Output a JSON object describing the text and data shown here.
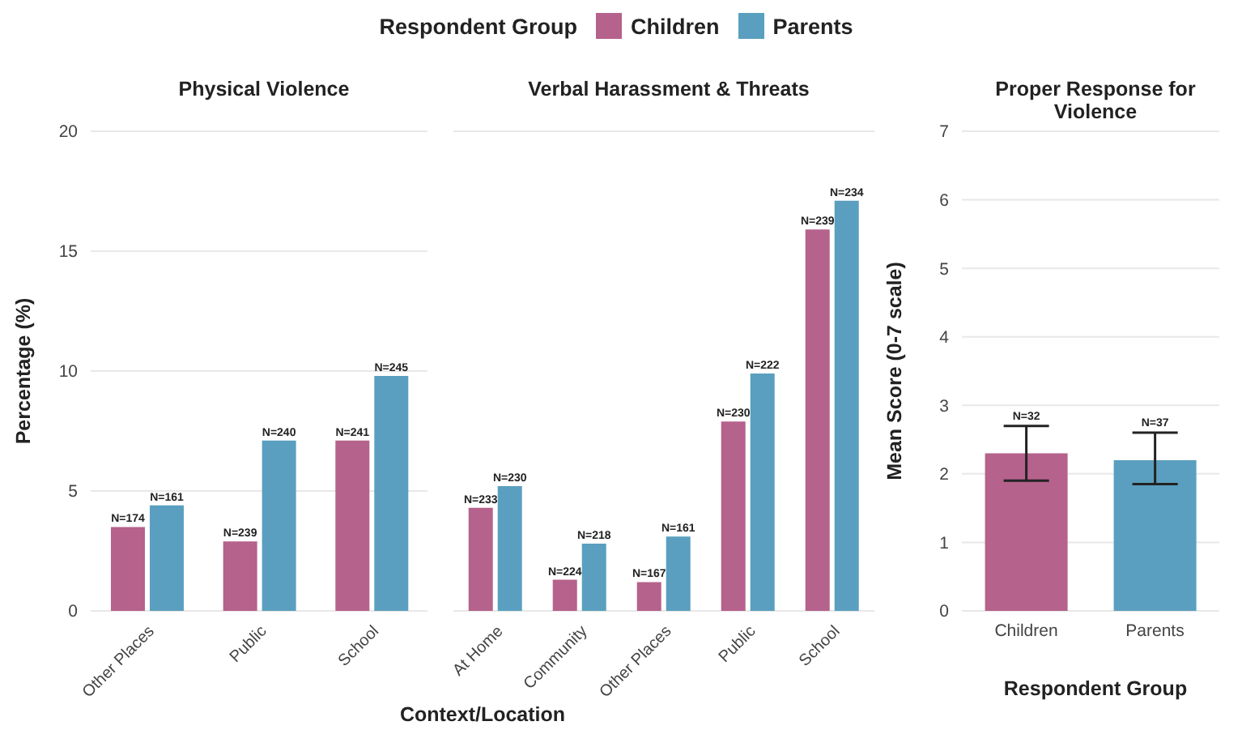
{
  "chart_data": [
    {
      "type": "bar",
      "title": "Physical Violence",
      "xlabel": "Context/Location",
      "ylabel": "Percentage (%)",
      "legend_title": "Respondent Group",
      "legend": "top",
      "grid": "y",
      "categories": [
        "Other Places",
        "Public",
        "School"
      ],
      "ylim": [
        0,
        20
      ],
      "yticks": [
        0,
        5,
        10,
        15,
        20
      ],
      "series": [
        {
          "name": "Children",
          "color": "#b5628c",
          "values": [
            3.5,
            2.9,
            7.1
          ]
        },
        {
          "name": "Parents",
          "color": "#5a9fbf",
          "values": [
            4.4,
            7.1,
            9.8
          ]
        }
      ],
      "annotations": [
        {
          "text": "N=174",
          "x": "Other Places",
          "y": 3.5
        },
        {
          "text": "N=161",
          "x": "Other Places",
          "y": 4.4
        },
        {
          "text": "N=239",
          "x": "Public",
          "y": 2.9
        },
        {
          "text": "N=240",
          "x": "Public",
          "y": 7.1
        },
        {
          "text": "N=241",
          "x": "School",
          "y": 7.1
        },
        {
          "text": "N=245",
          "x": "School",
          "y": 9.8
        }
      ]
    },
    {
      "type": "bar",
      "title": "Verbal Harassment & Threats",
      "grid": "y",
      "tick_labels": "x",
      "categories": [
        "At Home",
        "Community",
        "Other Places",
        "Public",
        "School"
      ],
      "ylim": [
        0,
        20
      ],
      "yticks": [
        0,
        5,
        10,
        15,
        20
      ],
      "series": [
        {
          "color": "#b5628c",
          "values": [
            4.3,
            1.3,
            1.2,
            7.9,
            15.9
          ]
        },
        {
          "color": "#5a9fbf",
          "values": [
            5.2,
            2.8,
            3.1,
            9.9,
            17.1
          ]
        }
      ],
      "annotations": [
        {
          "text": "N=233",
          "x": "At Home",
          "y": 4.3
        },
        {
          "text": "N=230",
          "x": "At Home",
          "y": 5.2
        },
        {
          "text": "N=224",
          "x": "Community",
          "y": 1.3
        },
        {
          "text": "N=218",
          "x": "Community",
          "y": 2.8
        },
        {
          "text": "N=167",
          "x": "Other Places",
          "y": 1.2
        },
        {
          "text": "N=161",
          "x": "Other Places",
          "y": 3.1
        },
        {
          "text": "N=230",
          "x": "Public",
          "y": 7.9
        },
        {
          "text": "N=222",
          "x": "Public",
          "y": 9.9
        },
        {
          "text": "N=239",
          "x": "School",
          "y": 15.9
        },
        {
          "text": "N=234",
          "x": "School",
          "y": 17.1
        }
      ]
    },
    {
      "type": "bar",
      "title": "Proper Response for Violence",
      "xlabel": "Respondent Group",
      "ylabel": "Mean Score (0-7 scale)",
      "grid": "y",
      "categories": [
        "Children",
        "Parents"
      ],
      "ylim": [
        0,
        7
      ],
      "yticks": [
        0,
        1,
        2,
        3,
        4,
        5,
        6,
        7
      ],
      "values": [
        2.3,
        2.2
      ],
      "colors": [
        "#b5628c",
        "#5a9fbf"
      ],
      "errors": [
        [
          1.9,
          2.7
        ],
        [
          1.85,
          2.6
        ]
      ],
      "annotations": [
        {
          "text": "N=32",
          "x": "Children",
          "y": 2.3
        },
        {
          "text": "N=37",
          "x": "Parents",
          "y": 2.2
        }
      ]
    }
  ]
}
